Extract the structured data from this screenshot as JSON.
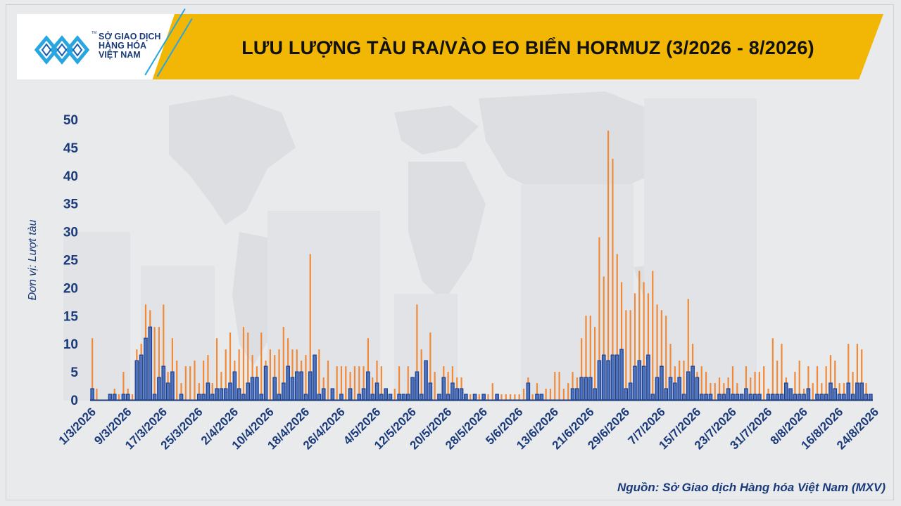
{
  "header": {
    "title": "LƯU LƯỢNG TÀU RA/VÀO EO BIỂN HORMUZ (3/2026 - 8/2026)",
    "logo_lines": [
      "SỞ GIAO DỊCH",
      "HÀNG HÓA",
      "VIỆT NAM"
    ],
    "logo_tm": "TM"
  },
  "footer": {
    "source": "Nguồn: Sở Giao dịch Hàng hóa Việt Nam (MXV)"
  },
  "colors": {
    "banner": "#f2b705",
    "orange_series": "#f08a38",
    "blue_series": "#1f3f8a",
    "axis_text": "#1a3a7a"
  },
  "chart_data": {
    "type": "bar",
    "title": "LƯU LƯỢNG TÀU RA/VÀO EO BIỂN HORMUZ (3/2026 - 8/2026)",
    "xlabel": "",
    "ylabel": "Đơn vị: Lượt tàu",
    "ylim": [
      0,
      50
    ],
    "yticks": [
      0,
      5,
      10,
      15,
      20,
      25,
      30,
      35,
      40,
      45,
      50
    ],
    "grid": false,
    "legend": "none",
    "x_start": "1/3/2026",
    "x_tick_labels": [
      "1/3/2026",
      "9/3/2026",
      "17/3/2026",
      "25/3/2026",
      "2/4/2026",
      "10/4/2026",
      "18/4/2026",
      "26/4/2026",
      "4/5/2026",
      "12/5/2026",
      "20/5/2026",
      "28/5/2026",
      "5/6/2026",
      "13/6/2026",
      "21/6/2026",
      "29/6/2026",
      "7/7/2026",
      "15/7/2026",
      "23/7/2026",
      "31/7/2026",
      "8/8/2026",
      "16/8/2026",
      "24/8/2026"
    ],
    "series": [
      {
        "color": "#f08a38",
        "values": [
          11,
          2,
          0,
          0,
          1,
          2,
          1,
          5,
          2,
          1,
          9,
          10,
          17,
          16,
          13,
          13,
          17,
          5,
          11,
          7,
          3,
          6,
          6,
          7,
          3,
          7,
          8,
          3,
          11,
          5,
          9,
          12,
          7,
          9,
          13,
          12,
          8,
          6,
          12,
          7,
          9,
          8,
          9,
          13,
          11,
          9,
          9,
          7,
          8,
          26,
          3,
          9,
          4,
          7,
          1,
          6,
          6,
          6,
          5,
          6,
          6,
          6,
          11,
          4,
          7,
          6,
          1,
          1,
          2,
          6,
          1,
          6,
          3,
          17,
          9,
          5,
          12,
          5,
          1,
          6,
          5,
          6,
          4,
          4,
          1,
          1,
          1,
          1,
          1,
          1,
          3,
          1,
          1,
          1,
          1,
          1,
          1,
          2,
          4,
          1,
          3,
          1,
          2,
          2,
          5,
          5,
          2,
          3,
          5,
          4,
          11,
          15,
          15,
          13,
          29,
          22,
          48,
          43,
          26,
          21,
          16,
          16,
          19,
          23,
          21,
          19,
          23,
          17,
          16,
          15,
          10,
          6,
          7,
          7,
          18,
          10,
          5,
          6,
          5,
          3,
          3,
          4,
          3,
          4,
          6,
          3,
          1,
          6,
          4,
          5,
          5,
          6,
          2,
          11,
          7,
          10,
          4,
          2,
          5,
          7,
          2,
          6,
          3,
          6,
          3,
          6,
          8,
          7,
          3,
          3,
          10,
          5,
          10,
          9,
          3,
          1
        ],
        "name": ""
      },
      {
        "color": "#1f3f8a",
        "values": [
          2,
          0,
          0,
          0,
          1,
          1,
          0,
          1,
          1,
          0,
          7,
          8,
          11,
          13,
          1,
          4,
          6,
          3,
          5,
          0,
          1,
          0,
          0,
          0,
          1,
          1,
          3,
          1,
          2,
          2,
          2,
          3,
          5,
          2,
          1,
          3,
          4,
          4,
          1,
          6,
          0,
          4,
          1,
          3,
          6,
          4,
          5,
          5,
          1,
          5,
          8,
          1,
          2,
          0,
          2,
          0,
          1,
          0,
          2,
          0,
          1,
          2,
          5,
          1,
          3,
          1,
          2,
          1,
          0,
          1,
          1,
          1,
          4,
          5,
          1,
          7,
          3,
          0,
          1,
          4,
          1,
          3,
          2,
          2,
          1,
          0,
          1,
          0,
          1,
          0,
          0,
          1,
          0,
          0,
          0,
          0,
          0,
          0,
          3,
          0,
          1,
          1,
          0,
          0,
          0,
          0,
          0,
          0,
          2,
          2,
          4,
          4,
          4,
          2,
          7,
          8,
          7,
          8,
          8,
          9,
          2,
          3,
          6,
          7,
          6,
          8,
          1,
          4,
          6,
          2,
          4,
          3,
          4,
          1,
          5,
          6,
          4,
          1,
          1,
          1,
          0,
          1,
          1,
          2,
          1,
          1,
          1,
          2,
          1,
          1,
          1,
          0,
          1,
          1,
          1,
          1,
          3,
          2,
          1,
          1,
          1,
          2,
          0,
          1,
          1,
          1,
          3,
          2,
          1,
          1,
          3,
          1,
          3,
          3,
          1,
          1
        ],
        "name": ""
      }
    ]
  }
}
